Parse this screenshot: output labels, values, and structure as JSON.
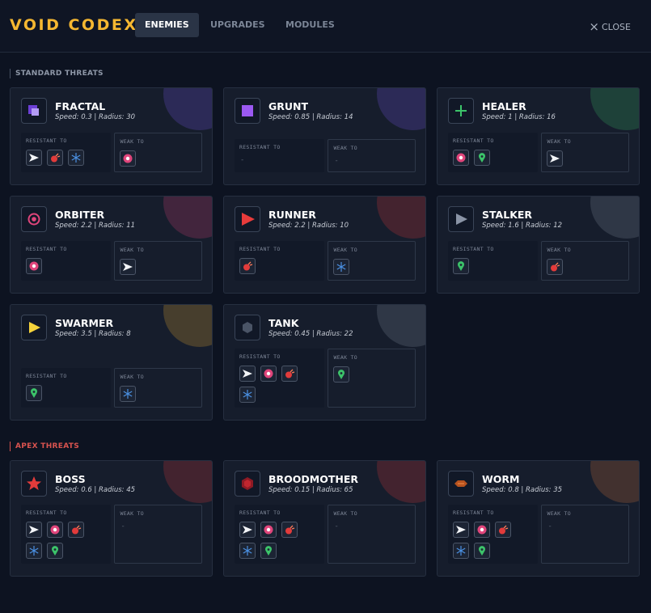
{
  "header": {
    "title": "VOID CODEX",
    "tabs": [
      "ENEMIES",
      "UPGRADES",
      "MODULES"
    ],
    "close": "CLOSE"
  },
  "labels": {
    "resistant": "RESISTANT TO",
    "weak": "WEAK TO"
  },
  "sections": [
    {
      "title": "STANDARD THREATS",
      "cards": [
        {
          "name": "FRACTAL",
          "stats": "Speed: 0.3 | Radius: 30"
        },
        {
          "name": "GRUNT",
          "stats": "Speed: 0.85 | Radius: 14",
          "resistant_empty": "-",
          "weak_empty": "-"
        },
        {
          "name": "HEALER",
          "stats": "Speed: 1 | Radius: 16"
        },
        {
          "name": "ORBITER",
          "stats": "Speed: 2.2 | Radius: 11"
        },
        {
          "name": "RUNNER",
          "stats": "Speed: 2.2 | Radius: 10"
        },
        {
          "name": "STALKER",
          "stats": "Speed: 1.6 | Radius: 12"
        },
        {
          "name": "SWARMER",
          "stats": "Speed: 3.5 | Radius: 8"
        },
        {
          "name": "TANK",
          "stats": "Speed: 0.45 | Radius: 22"
        }
      ]
    },
    {
      "title": "APEX THREATS",
      "cards": [
        {
          "name": "BOSS",
          "stats": "Speed: 0.6 | Radius: 45",
          "weak_empty": "-"
        },
        {
          "name": "BROODMOTHER",
          "stats": "Speed: 0.15 | Radius: 65",
          "weak_empty": "-"
        },
        {
          "name": "WORM",
          "stats": "Speed: 0.8 | Radius: 35",
          "weak_empty": "-"
        }
      ]
    }
  ]
}
